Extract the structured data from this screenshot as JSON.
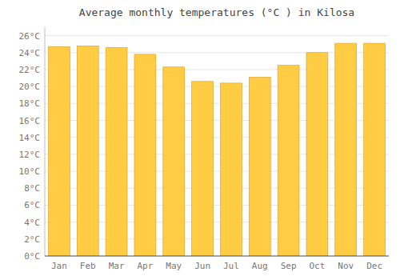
{
  "chart_data": {
    "type": "bar",
    "title": "Average monthly temperatures (°C ) in Kilosa",
    "categories": [
      "Jan",
      "Feb",
      "Mar",
      "Apr",
      "May",
      "Jun",
      "Jul",
      "Aug",
      "Sep",
      "Oct",
      "Nov",
      "Dec"
    ],
    "values": [
      24.7,
      24.8,
      24.6,
      23.8,
      22.3,
      20.6,
      20.4,
      21.1,
      22.5,
      24.0,
      25.1,
      25.1
    ],
    "color": "#FFCC44",
    "ylim": [
      0,
      27
    ],
    "yticks": [
      {
        "value": 0,
        "label": "0°C"
      },
      {
        "value": 2,
        "label": "2°C"
      },
      {
        "value": 4,
        "label": "4°C"
      },
      {
        "value": 6,
        "label": "6°C"
      },
      {
        "value": 8,
        "label": "8°C"
      },
      {
        "value": 10,
        "label": "10°C"
      },
      {
        "value": 12,
        "label": "12°C"
      },
      {
        "value": 14,
        "label": "14°C"
      },
      {
        "value": 16,
        "label": "16°C"
      },
      {
        "value": 18,
        "label": "18°C"
      },
      {
        "value": 20,
        "label": "20°C"
      },
      {
        "value": 22,
        "label": "22°C"
      },
      {
        "value": 24,
        "label": "24°C"
      },
      {
        "value": 26,
        "label": "26°C"
      }
    ],
    "grid": true
  }
}
